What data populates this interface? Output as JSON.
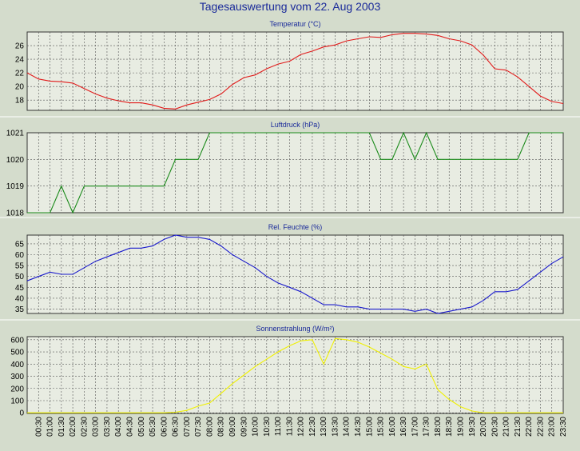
{
  "title": "Tagesauswertung vom 22. Aug 2003",
  "colors": {
    "background": "#d4dccc",
    "plot_background": "#e8ece2",
    "grid": "#555555",
    "title_text": "#1a2a9a",
    "temperature_line": "#e11b1b",
    "pressure_line": "#1a8a1a",
    "humidity_line": "#1a1acc",
    "radiation_line": "#f0f000"
  },
  "chart_data": [
    {
      "type": "line",
      "title": "Temperatur (°C)",
      "ylim": [
        16.5,
        28
      ],
      "yticks": [
        18,
        20,
        22,
        24,
        26
      ],
      "grid": true,
      "series": [
        {
          "color_key": "temperature_line",
          "x": [
            0,
            0.5,
            1,
            1.5,
            2,
            2.5,
            3,
            3.5,
            4,
            4.5,
            5,
            5.5,
            6,
            6.5,
            7,
            7.5,
            8,
            8.5,
            9,
            9.5,
            10,
            10.5,
            11,
            11.5,
            12,
            12.5,
            13,
            13.5,
            14,
            14.5,
            15,
            15.5,
            16,
            16.5,
            17,
            17.5,
            18,
            18.5,
            19,
            19.5,
            20,
            20.5,
            21,
            21.5,
            22,
            22.5,
            23,
            23.5
          ],
          "values": [
            22.0,
            21.1,
            20.8,
            20.7,
            20.5,
            19.7,
            18.9,
            18.3,
            17.9,
            17.6,
            17.6,
            17.3,
            16.8,
            16.7,
            17.3,
            17.7,
            18.1,
            18.9,
            20.3,
            21.3,
            21.7,
            22.6,
            23.3,
            23.7,
            24.7,
            25.2,
            25.8,
            26.1,
            26.7,
            27.0,
            27.3,
            27.2,
            27.6,
            27.8,
            27.8,
            27.7,
            27.5,
            27.0,
            26.7,
            26.1,
            24.6,
            22.6,
            22.4,
            21.4,
            20.0,
            18.6,
            17.8,
            17.5
          ]
        }
      ]
    },
    {
      "type": "line",
      "title": "Luftdruck (hPa)",
      "ylim": [
        1018,
        1021
      ],
      "yticks": [
        1018,
        1019,
        1020,
        1021
      ],
      "grid": true,
      "series": [
        {
          "color_key": "pressure_line",
          "x": [
            0,
            0.5,
            1,
            1.5,
            2,
            2.5,
            3,
            3.5,
            4,
            4.5,
            5,
            5.5,
            6,
            6.5,
            7,
            7.5,
            8,
            8.5,
            9,
            9.5,
            10,
            10.5,
            11,
            11.5,
            12,
            12.5,
            13,
            13.5,
            14,
            14.5,
            15,
            15.5,
            16,
            16.5,
            17,
            17.5,
            18,
            18.5,
            19,
            19.5,
            20,
            20.5,
            21,
            21.5,
            22,
            22.5,
            23,
            23.5
          ],
          "values": [
            1018,
            1018,
            1018,
            1019,
            1018,
            1019,
            1019,
            1019,
            1019,
            1019,
            1019,
            1019,
            1019,
            1020,
            1020,
            1020,
            1021,
            1021,
            1021,
            1021,
            1021,
            1021,
            1021,
            1021,
            1021,
            1021,
            1021,
            1021,
            1021,
            1021,
            1021,
            1020,
            1020,
            1021,
            1020,
            1021,
            1020,
            1020,
            1020,
            1020,
            1020,
            1020,
            1020,
            1020,
            1021,
            1021,
            1021,
            1021
          ]
        }
      ]
    },
    {
      "type": "line",
      "title": "Rel. Feuchte (%)",
      "ylim": [
        33,
        69
      ],
      "yticks": [
        35,
        40,
        45,
        50,
        55,
        60,
        65
      ],
      "grid": true,
      "series": [
        {
          "color_key": "humidity_line",
          "x": [
            0,
            0.5,
            1,
            1.5,
            2,
            2.5,
            3,
            3.5,
            4,
            4.5,
            5,
            5.5,
            6,
            6.5,
            7,
            7.5,
            8,
            8.5,
            9,
            9.5,
            10,
            10.5,
            11,
            11.5,
            12,
            12.5,
            13,
            13.5,
            14,
            14.5,
            15,
            15.5,
            16,
            16.5,
            17,
            17.5,
            18,
            18.5,
            19,
            19.5,
            20,
            20.5,
            21,
            21.5,
            22,
            22.5,
            23,
            23.5
          ],
          "values": [
            48,
            50,
            52,
            51,
            51,
            54,
            57,
            59,
            61,
            63,
            63,
            64,
            67,
            69,
            68,
            68,
            67,
            64,
            60,
            57,
            54,
            50,
            47,
            45,
            43,
            40,
            37,
            37,
            36,
            36,
            35,
            35,
            35,
            35,
            34,
            35,
            33,
            34,
            35,
            36,
            39,
            43,
            43,
            44,
            48,
            52,
            56,
            59
          ]
        }
      ]
    },
    {
      "type": "line",
      "title": "Sonnenstrahlung (W/m²)",
      "ylim": [
        -5,
        625
      ],
      "yticks": [
        0,
        100,
        200,
        300,
        400,
        500,
        600
      ],
      "grid": true,
      "series": [
        {
          "color_key": "radiation_line",
          "x": [
            0,
            0.5,
            1,
            1.5,
            2,
            2.5,
            3,
            3.5,
            4,
            4.5,
            5,
            5.5,
            6,
            6.5,
            7,
            7.5,
            8,
            8.5,
            9,
            9.5,
            10,
            10.5,
            11,
            11.5,
            12,
            12.5,
            13,
            13.5,
            14,
            14.5,
            15,
            15.5,
            16,
            16.5,
            17,
            17.5,
            18,
            18.5,
            19,
            19.5,
            20,
            20.5,
            21,
            21.5,
            22,
            22.5,
            23,
            23.5
          ],
          "values": [
            0,
            0,
            0,
            0,
            0,
            0,
            0,
            0,
            0,
            0,
            0,
            0,
            0,
            5,
            20,
            55,
            80,
            160,
            240,
            310,
            380,
            440,
            500,
            550,
            590,
            600,
            400,
            610,
            600,
            580,
            540,
            490,
            440,
            380,
            360,
            400,
            190,
            110,
            50,
            15,
            0,
            0,
            0,
            0,
            0,
            0,
            0,
            0
          ]
        }
      ]
    }
  ],
  "x_axis": {
    "tick_labels": [
      "00:30",
      "01:00",
      "01:30",
      "02:00",
      "02:30",
      "03:00",
      "03:30",
      "04:00",
      "04:30",
      "05:00",
      "05:30",
      "06:00",
      "06:30",
      "07:00",
      "07:30",
      "08:00",
      "08:30",
      "09:00",
      "09:30",
      "10:00",
      "10:30",
      "11:00",
      "11:30",
      "12:00",
      "12:30",
      "13:00",
      "13:30",
      "14:00",
      "14:30",
      "15:00",
      "15:30",
      "16:00",
      "16:30",
      "17:00",
      "17:30",
      "18:00",
      "18:30",
      "19:00",
      "19:30",
      "20:00",
      "20:30",
      "21:00",
      "21:30",
      "22:00",
      "22:30",
      "23:00",
      "23:30"
    ],
    "xlim": [
      0,
      23.5
    ]
  }
}
